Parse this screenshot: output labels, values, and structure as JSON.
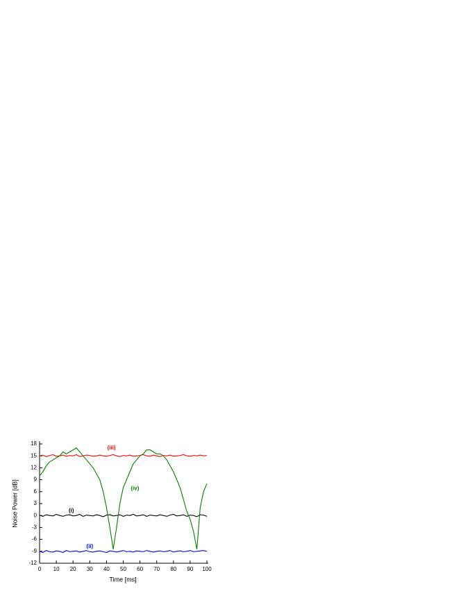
{
  "chart_data": {
    "type": "line",
    "x_label": "Time [ms]",
    "y_label": "Noise Power [dB]",
    "x": [
      0,
      2,
      4,
      6,
      8,
      10,
      12,
      14,
      16,
      18,
      20,
      22,
      24,
      26,
      28,
      30,
      32,
      34,
      36,
      38,
      40,
      42,
      44,
      46,
      48,
      50,
      52,
      54,
      56,
      58,
      60,
      62,
      64,
      66,
      68,
      70,
      72,
      74,
      76,
      78,
      80,
      82,
      84,
      86,
      88,
      90,
      92,
      94,
      96,
      98,
      100
    ],
    "series": [
      {
        "name": "(i)",
        "color": "#000000",
        "values": [
          0.1,
          -0.2,
          0.2,
          0,
          -0.1,
          0.3,
          0,
          -0.2,
          0.1,
          0.2,
          -0.1,
          0,
          0.3,
          -0.2,
          0.1,
          0,
          -0.1,
          0.2,
          0,
          -0.3,
          0.1,
          0.2,
          -0.1,
          0,
          0.2,
          -0.2,
          0.1,
          0,
          0.3,
          -0.1,
          0,
          0.2,
          -0.2,
          0.1,
          0,
          -0.1,
          0.2,
          0,
          -0.2,
          0.1,
          0.3,
          -0.1,
          0,
          0.2,
          -0.2,
          0.1,
          0,
          -0.3,
          0.2,
          0.1,
          -0.2
        ]
      },
      {
        "name": "(ii)",
        "color": "#0000ff",
        "values": [
          -9,
          -9.3,
          -8.8,
          -9.1,
          -9.2,
          -8.9,
          -9,
          -9.3,
          -8.8,
          -9.1,
          -9,
          -8.9,
          -9.2,
          -9,
          -8.8,
          -9.1,
          -9.2,
          -9,
          -8.9,
          -9.1,
          -9.3,
          -8.9,
          -9,
          -9.2,
          -9,
          -8.8,
          -9.1,
          -9,
          -9.2,
          -8.9,
          -9,
          -9.1,
          -8.8,
          -9,
          -9.2,
          -9,
          -8.9,
          -9.1,
          -9,
          -8.8,
          -9.2,
          -9,
          -8.9,
          -9.1,
          -9,
          -8.8,
          -9.1,
          -9,
          -8.9,
          -8.8,
          -9
        ]
      },
      {
        "name": "(iii)",
        "color": "#ff0000",
        "values": [
          15,
          15.2,
          14.8,
          15.1,
          15.3,
          14.9,
          15,
          15.2,
          14.9,
          15.1,
          15,
          15.3,
          14.8,
          15,
          15.2,
          15.1,
          14.9,
          15,
          15.2,
          15,
          14.9,
          15.1,
          15.3,
          15,
          14.8,
          15.1,
          15,
          15.2,
          14.9,
          15,
          15.1,
          15.3,
          15,
          14.9,
          15.2,
          15,
          14.8,
          15.1,
          15,
          15.2,
          14.9,
          15,
          15.1,
          15.3,
          15,
          14.9,
          15.1,
          15,
          15.2,
          15,
          15.1
        ]
      },
      {
        "name": "(iv)",
        "color": "#008000",
        "values": [
          10,
          11,
          12.5,
          13.5,
          14,
          14.5,
          15,
          16,
          15.5,
          16,
          16.5,
          17,
          16,
          15,
          14,
          13,
          12,
          10.5,
          9,
          6,
          2,
          -3,
          -8.5,
          -3,
          3,
          7,
          9,
          11,
          13,
          14,
          15,
          15.5,
          16.5,
          16.5,
          16,
          15.5,
          15.5,
          15,
          14,
          12.5,
          11,
          9,
          7,
          4,
          1,
          -1,
          -4,
          -8.5,
          2,
          6,
          8
        ]
      }
    ],
    "xlim": [
      0,
      100
    ],
    "xticks": [
      0,
      10,
      20,
      30,
      40,
      50,
      60,
      70,
      80,
      90,
      100
    ],
    "ylim": [
      -12,
      18
    ],
    "yticks": [
      -12,
      -9,
      -6,
      -3,
      0,
      3,
      6,
      9,
      12,
      15,
      18
    ]
  }
}
